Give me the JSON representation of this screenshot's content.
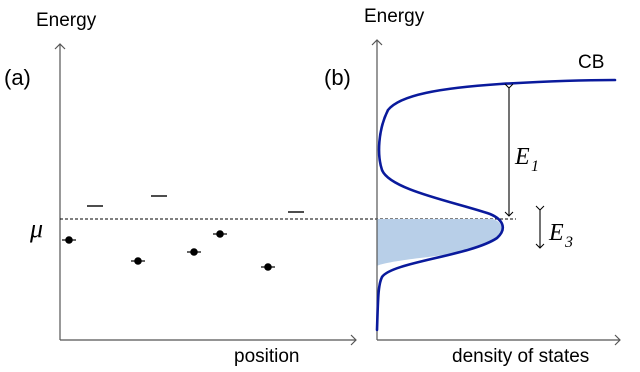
{
  "panel_a": {
    "panel_label": "(a)",
    "y_axis_label": "Energy",
    "x_axis_label": "position",
    "mu_label": "μ"
  },
  "panel_b": {
    "panel_label": "(b)",
    "y_axis_label": "Energy",
    "x_axis_label": "density of states",
    "band_label": "CB",
    "e1_main": "E",
    "e1_sub": "1",
    "e3_main": "E",
    "e3_sub": "3"
  },
  "colors": {
    "axis": "#555555",
    "curve": "#0a1a9c",
    "fill": "#b8cfe8",
    "marker": "#000000"
  }
}
